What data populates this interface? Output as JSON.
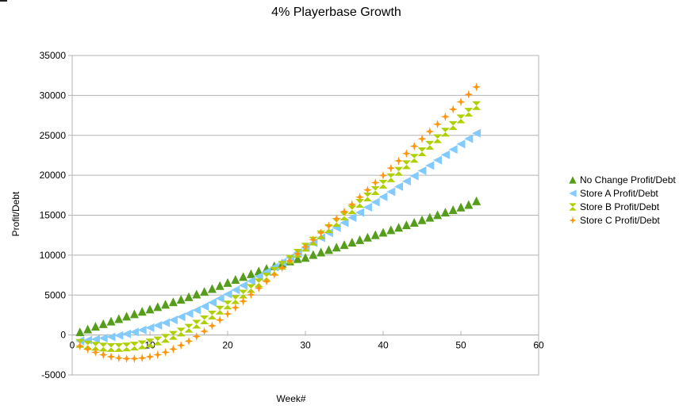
{
  "chart_data": {
    "type": "scatter",
    "title": "4% Playerbase Growth",
    "xlabel": "Week#",
    "ylabel": "Profit/Debt",
    "xlim": [
      0,
      60
    ],
    "ylim": [
      -5000,
      35000
    ],
    "x_ticks": [
      "0",
      "10",
      "20",
      "30",
      "40",
      "50",
      "60"
    ],
    "y_ticks": [
      "-5000",
      "0",
      "5000",
      "10000",
      "15000",
      "20000",
      "25000",
      "30000",
      "35000"
    ],
    "grid": true,
    "legend_position": "right",
    "x": [
      1,
      2,
      3,
      4,
      5,
      6,
      7,
      8,
      9,
      10,
      11,
      12,
      13,
      14,
      15,
      16,
      17,
      18,
      19,
      20,
      21,
      22,
      23,
      24,
      25,
      26,
      27,
      28,
      29,
      30,
      31,
      32,
      33,
      34,
      35,
      36,
      37,
      38,
      39,
      40,
      41,
      42,
      43,
      44,
      45,
      46,
      47,
      48,
      49,
      50,
      51,
      52
    ],
    "series": [
      {
        "name": "No Change Profit/Debt",
        "marker": "triangle-up",
        "color": "#579d1c",
        "values": [
          400,
          750,
          1090,
          1420,
          1740,
          2050,
          2360,
          2660,
          2960,
          3250,
          3550,
          3850,
          4160,
          4470,
          4790,
          5120,
          5460,
          5820,
          6190,
          6580,
          6960,
          7320,
          7670,
          8010,
          8340,
          8660,
          8970,
          9270,
          9560,
          9710,
          10070,
          10390,
          10700,
          11010,
          11320,
          11620,
          11930,
          12240,
          12550,
          12860,
          13170,
          13490,
          13800,
          14110,
          14430,
          14740,
          15060,
          15380,
          15700,
          16020,
          16340,
          16800
        ]
      },
      {
        "name": "Store A Profit/Debt",
        "marker": "triangle-left",
        "color": "#83caff",
        "values": [
          -730,
          -640,
          -530,
          -400,
          -240,
          -60,
          140,
          370,
          620,
          900,
          1200,
          1530,
          1890,
          2270,
          2680,
          3120,
          3580,
          4070,
          4580,
          5110,
          5650,
          6200,
          6760,
          7330,
          7910,
          8500,
          9100,
          9700,
          10310,
          10920,
          11540,
          12160,
          12790,
          13420,
          14060,
          14700,
          15340,
          15990,
          16640,
          17290,
          17940,
          18590,
          19250,
          19910,
          20570,
          21230,
          21900,
          22570,
          23240,
          23910,
          24580,
          25260
        ]
      },
      {
        "name": "Store B Profit/Debt",
        "marker": "hourglass",
        "color": "#aecf00",
        "values": [
          -1060,
          -1260,
          -1410,
          -1510,
          -1560,
          -1560,
          -1500,
          -1390,
          -1230,
          -1010,
          -740,
          -420,
          -50,
          370,
          840,
          1350,
          1900,
          2490,
          3110,
          3760,
          4430,
          5120,
          5820,
          6530,
          7250,
          7980,
          8720,
          9470,
          10230,
          10990,
          11760,
          12540,
          13320,
          14100,
          14890,
          15680,
          16480,
          17280,
          18080,
          18880,
          19690,
          20500,
          21310,
          22120,
          22940,
          23760,
          24580,
          25400,
          26230,
          27060,
          27890,
          28720
        ]
      },
      {
        "name": "Store C Profit/Debt",
        "marker": "plus-star",
        "color": "#ff950e",
        "values": [
          -1380,
          -1800,
          -2170,
          -2480,
          -2720,
          -2880,
          -2960,
          -2960,
          -2880,
          -2720,
          -2480,
          -2160,
          -1770,
          -1300,
          -770,
          -180,
          460,
          1150,
          1880,
          2640,
          3420,
          4220,
          5040,
          5870,
          6710,
          7560,
          8420,
          9290,
          10160,
          11030,
          11910,
          12790,
          13680,
          14570,
          15460,
          16360,
          17260,
          18160,
          19070,
          19980,
          20890,
          21800,
          22720,
          23640,
          24560,
          25480,
          26400,
          27330,
          28260,
          29190,
          30120,
          31050
        ]
      }
    ]
  }
}
